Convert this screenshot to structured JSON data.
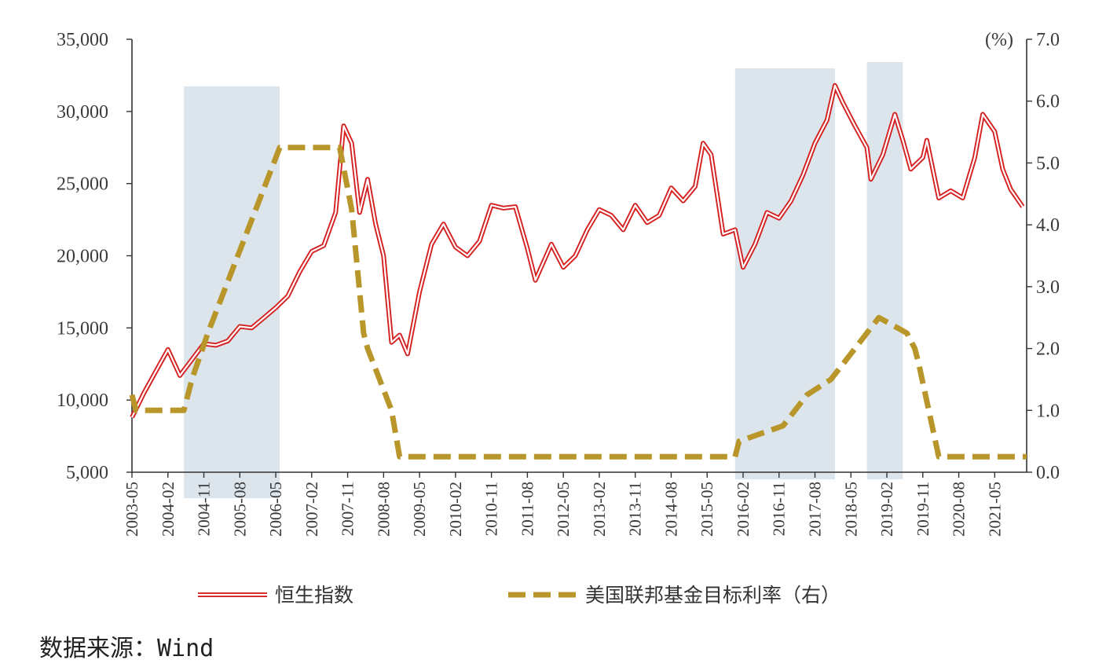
{
  "chart_data": {
    "type": "line",
    "title": "",
    "y_left": {
      "min": 5000,
      "max": 35000,
      "ticks": [
        5000,
        10000,
        15000,
        20000,
        25000,
        30000,
        35000
      ],
      "tick_labels": [
        "5,000",
        "10,000",
        "15,000",
        "20,000",
        "25,000",
        "30,000",
        "35,000"
      ]
    },
    "y_right": {
      "min": 0,
      "max": 7,
      "unit": "(%)",
      "ticks": [
        0,
        1,
        2,
        3,
        4,
        5,
        6,
        7
      ],
      "tick_labels": [
        "0.0",
        "1.0",
        "2.0",
        "3.0",
        "4.0",
        "5.0",
        "6.0",
        "7.0"
      ]
    },
    "x_range": [
      "2003-05",
      "2022-01"
    ],
    "x_tick_labels": [
      "2003-05",
      "2004-02",
      "2004-11",
      "2005-08",
      "2006-05",
      "2007-02",
      "2007-11",
      "2008-08",
      "2009-05",
      "2010-02",
      "2010-11",
      "2011-08",
      "2012-05",
      "2013-02",
      "2013-11",
      "2014-08",
      "2015-05",
      "2016-02",
      "2016-11",
      "2017-08",
      "2018-05",
      "2019-02",
      "2019-11",
      "2020-08",
      "2021-05"
    ],
    "shaded_periods": [
      {
        "start": "2004-06",
        "end": "2006-06"
      },
      {
        "start": "2015-12",
        "end": "2018-01"
      },
      {
        "start": "2018-09",
        "end": "2019-06"
      }
    ],
    "series": [
      {
        "name": "恒生指数",
        "axis": "left",
        "color": "#d42020",
        "style": "double-line",
        "points": [
          [
            "2003-05",
            8800
          ],
          [
            "2003-08",
            10500
          ],
          [
            "2003-11",
            12000
          ],
          [
            "2004-02",
            13500
          ],
          [
            "2004-05",
            11700
          ],
          [
            "2004-08",
            12800
          ],
          [
            "2004-11",
            13900
          ],
          [
            "2005-02",
            13800
          ],
          [
            "2005-05",
            14100
          ],
          [
            "2005-08",
            15100
          ],
          [
            "2005-11",
            15000
          ],
          [
            "2006-02",
            15700
          ],
          [
            "2006-05",
            16400
          ],
          [
            "2006-08",
            17200
          ],
          [
            "2006-11",
            18900
          ],
          [
            "2007-02",
            20300
          ],
          [
            "2007-05",
            20700
          ],
          [
            "2007-08",
            23000
          ],
          [
            "2007-10",
            29000
          ],
          [
            "2007-12",
            27800
          ],
          [
            "2008-02",
            23000
          ],
          [
            "2008-04",
            25300
          ],
          [
            "2008-06",
            22200
          ],
          [
            "2008-08",
            20000
          ],
          [
            "2008-10",
            14000
          ],
          [
            "2008-12",
            14500
          ],
          [
            "2009-02",
            13200
          ],
          [
            "2009-05",
            17500
          ],
          [
            "2009-08",
            20800
          ],
          [
            "2009-11",
            22200
          ],
          [
            "2010-02",
            20600
          ],
          [
            "2010-05",
            20000
          ],
          [
            "2010-08",
            21000
          ],
          [
            "2010-11",
            23500
          ],
          [
            "2011-02",
            23300
          ],
          [
            "2011-05",
            23400
          ],
          [
            "2011-08",
            20500
          ],
          [
            "2011-10",
            18300
          ],
          [
            "2012-02",
            20800
          ],
          [
            "2012-05",
            19200
          ],
          [
            "2012-08",
            20000
          ],
          [
            "2012-11",
            21800
          ],
          [
            "2013-02",
            23200
          ],
          [
            "2013-05",
            22800
          ],
          [
            "2013-08",
            21800
          ],
          [
            "2013-11",
            23500
          ],
          [
            "2014-02",
            22300
          ],
          [
            "2014-05",
            22800
          ],
          [
            "2014-08",
            24700
          ],
          [
            "2014-11",
            23800
          ],
          [
            "2015-02",
            24800
          ],
          [
            "2015-04",
            27800
          ],
          [
            "2015-06",
            27000
          ],
          [
            "2015-09",
            21500
          ],
          [
            "2015-12",
            21800
          ],
          [
            "2016-02",
            19200
          ],
          [
            "2016-05",
            20800
          ],
          [
            "2016-08",
            23000
          ],
          [
            "2016-11",
            22600
          ],
          [
            "2017-02",
            23800
          ],
          [
            "2017-05",
            25600
          ],
          [
            "2017-08",
            27800
          ],
          [
            "2017-11",
            29400
          ],
          [
            "2018-01",
            31800
          ],
          [
            "2018-03",
            30600
          ],
          [
            "2018-06",
            29000
          ],
          [
            "2018-09",
            27500
          ],
          [
            "2018-10",
            25300
          ],
          [
            "2019-01",
            27000
          ],
          [
            "2019-04",
            29800
          ],
          [
            "2019-06",
            28000
          ],
          [
            "2019-08",
            26000
          ],
          [
            "2019-11",
            26800
          ],
          [
            "2019-12",
            28000
          ],
          [
            "2020-03",
            24000
          ],
          [
            "2020-06",
            24500
          ],
          [
            "2020-09",
            24000
          ],
          [
            "2020-12",
            26800
          ],
          [
            "2021-02",
            29800
          ],
          [
            "2021-05",
            28600
          ],
          [
            "2021-07",
            26000
          ],
          [
            "2021-09",
            24600
          ],
          [
            "2021-12",
            23400
          ]
        ]
      },
      {
        "name": "美国联邦基金目标利率（右）",
        "axis": "right",
        "color": "#b8962a",
        "style": "dashed",
        "points": [
          [
            "2003-05",
            1.25
          ],
          [
            "2003-06",
            1.0
          ],
          [
            "2004-06",
            1.0
          ],
          [
            "2004-08",
            1.5
          ],
          [
            "2004-12",
            2.25
          ],
          [
            "2005-03",
            2.75
          ],
          [
            "2005-06",
            3.25
          ],
          [
            "2005-09",
            3.75
          ],
          [
            "2005-12",
            4.25
          ],
          [
            "2006-03",
            4.75
          ],
          [
            "2006-06",
            5.25
          ],
          [
            "2007-09",
            5.25
          ],
          [
            "2007-12",
            4.25
          ],
          [
            "2008-03",
            2.25
          ],
          [
            "2008-04",
            2.0
          ],
          [
            "2008-10",
            1.0
          ],
          [
            "2008-12",
            0.25
          ],
          [
            "2015-12",
            0.25
          ],
          [
            "2016-01",
            0.5
          ],
          [
            "2016-12",
            0.75
          ],
          [
            "2017-03",
            1.0
          ],
          [
            "2017-06",
            1.25
          ],
          [
            "2017-12",
            1.5
          ],
          [
            "2018-03",
            1.75
          ],
          [
            "2018-06",
            2.0
          ],
          [
            "2018-09",
            2.25
          ],
          [
            "2018-12",
            2.5
          ],
          [
            "2019-07",
            2.25
          ],
          [
            "2019-09",
            2.0
          ],
          [
            "2019-10",
            1.75
          ],
          [
            "2020-03",
            0.25
          ],
          [
            "2022-01",
            0.25
          ]
        ]
      }
    ],
    "legend": {
      "position": "bottom"
    }
  },
  "source_note": "数据来源：Wind"
}
